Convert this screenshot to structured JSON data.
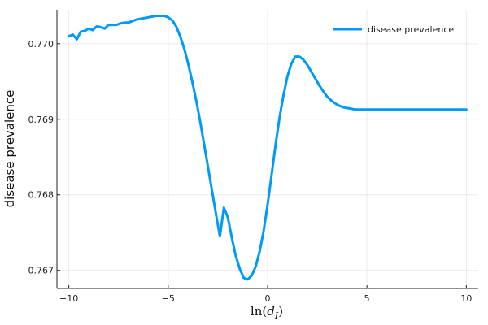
{
  "chart_data": {
    "type": "line",
    "title": "",
    "xlabel": "ln(d_I)",
    "ylabel": "disease prevalence",
    "xlim": [
      -10.6,
      10.6
    ],
    "ylim": [
      0.76676,
      0.77045
    ],
    "xticks": [
      -10,
      -5,
      0,
      5,
      10
    ],
    "xtick_labels": [
      "−10",
      "−5",
      "0",
      "5",
      "10"
    ],
    "yticks": [
      0.767,
      0.768,
      0.769,
      0.77
    ],
    "ytick_labels": [
      "0.767",
      "0.768",
      "0.769",
      "0.770"
    ],
    "grid": true,
    "legend_position": "top-right",
    "series": [
      {
        "name": "disease prevalence",
        "color": "#009af9",
        "x": [
          -10.0,
          -9.8,
          -9.6,
          -9.4,
          -9.2,
          -9.0,
          -8.8,
          -8.6,
          -8.4,
          -8.2,
          -8.0,
          -7.8,
          -7.6,
          -7.4,
          -7.2,
          -7.0,
          -6.8,
          -6.6,
          -6.4,
          -6.2,
          -6.0,
          -5.8,
          -5.6,
          -5.4,
          -5.2,
          -5.0,
          -4.8,
          -4.6,
          -4.4,
          -4.2,
          -4.0,
          -3.8,
          -3.6,
          -3.4,
          -3.2,
          -3.0,
          -2.8,
          -2.6,
          -2.4,
          -2.2,
          -2.0,
          -1.8,
          -1.6,
          -1.4,
          -1.2,
          -1.0,
          -0.8,
          -0.6,
          -0.4,
          -0.2,
          0.0,
          0.2,
          0.4,
          0.6,
          0.8,
          1.0,
          1.2,
          1.4,
          1.6,
          1.8,
          2.0,
          2.2,
          2.4,
          2.6,
          2.8,
          3.0,
          3.2,
          3.4,
          3.6,
          3.8,
          4.0,
          4.2,
          4.4,
          4.6,
          4.8,
          5.0,
          5.4,
          5.8,
          6.2,
          6.6,
          7.0,
          7.5,
          8.0,
          8.5,
          9.0,
          9.5,
          10.0
        ],
        "values": [
          0.7701,
          0.77012,
          0.77006,
          0.77016,
          0.77017,
          0.7702,
          0.77018,
          0.77023,
          0.77022,
          0.7702,
          0.77025,
          0.77025,
          0.77025,
          0.77027,
          0.77028,
          0.77028,
          0.7703,
          0.77032,
          0.77033,
          0.77034,
          0.77035,
          0.77036,
          0.77037,
          0.77037,
          0.77037,
          0.77035,
          0.77031,
          0.77023,
          0.7701,
          0.76994,
          0.76974,
          0.76951,
          0.76926,
          0.76898,
          0.76868,
          0.76837,
          0.76806,
          0.76775,
          0.76745,
          0.76783,
          0.7677,
          0.76743,
          0.76719,
          0.76702,
          0.7669,
          0.76688,
          0.76693,
          0.76705,
          0.76725,
          0.76752,
          0.76787,
          0.76826,
          0.76866,
          0.76902,
          0.76932,
          0.76957,
          0.76974,
          0.76983,
          0.76983,
          0.76979,
          0.76972,
          0.76963,
          0.76954,
          0.76945,
          0.76937,
          0.7693,
          0.76925,
          0.76921,
          0.76918,
          0.76916,
          0.76915,
          0.76914,
          0.76913,
          0.76913,
          0.76913,
          0.76913,
          0.76913,
          0.76913,
          0.76913,
          0.76913,
          0.76913,
          0.76913,
          0.76913,
          0.76913,
          0.76913,
          0.76913,
          0.76913
        ]
      }
    ]
  }
}
